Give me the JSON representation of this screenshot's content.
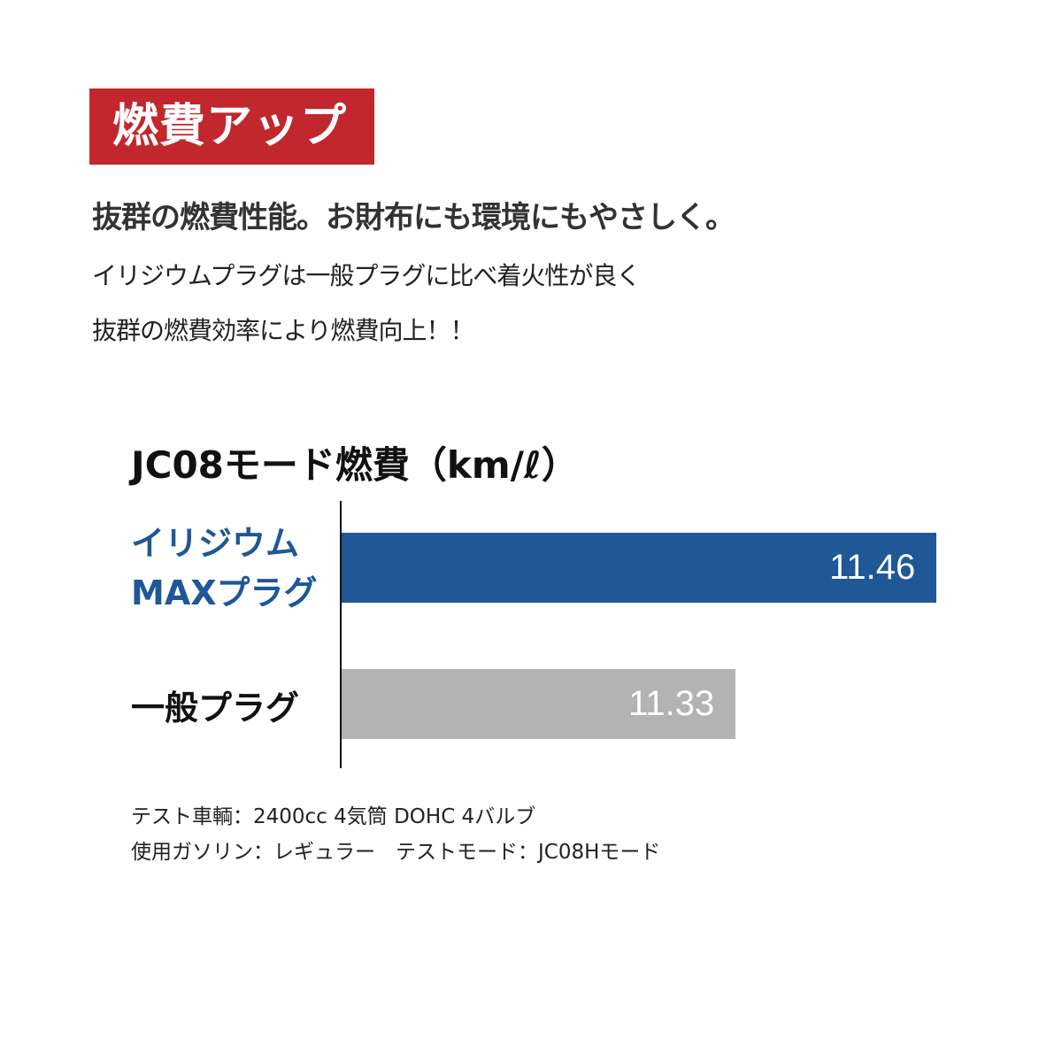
{
  "badge": {
    "label": "燃費アップ",
    "color": "#c1272d"
  },
  "headline": "抜群の燃費性能。お財布にも環境にもやさしく。",
  "body": [
    "イリジウムプラグは一般プラグに比べ着火性が良く",
    "抜群の燃費効率により燃費向上！！"
  ],
  "chart_data": {
    "type": "bar",
    "orientation": "horizontal",
    "title": "JC08モード燃費（km/ℓ）",
    "categories": [
      {
        "lines": [
          "イリジウム",
          "MAXプラグ"
        ],
        "color": "#1f5797"
      },
      {
        "lines": [
          "一般プラグ"
        ],
        "color": "#111111"
      }
    ],
    "values": [
      11.46,
      11.33
    ],
    "data_labels": [
      "11.46",
      "11.33"
    ],
    "bar_colors": [
      "#1f5797",
      "#b3b3b4"
    ],
    "grid": false
  },
  "footnotes": [
    "テスト車輌：2400cc 4気筒 DOHC 4バルブ",
    "使用ガソリン：レギュラー　テストモード：JC08Hモード"
  ]
}
